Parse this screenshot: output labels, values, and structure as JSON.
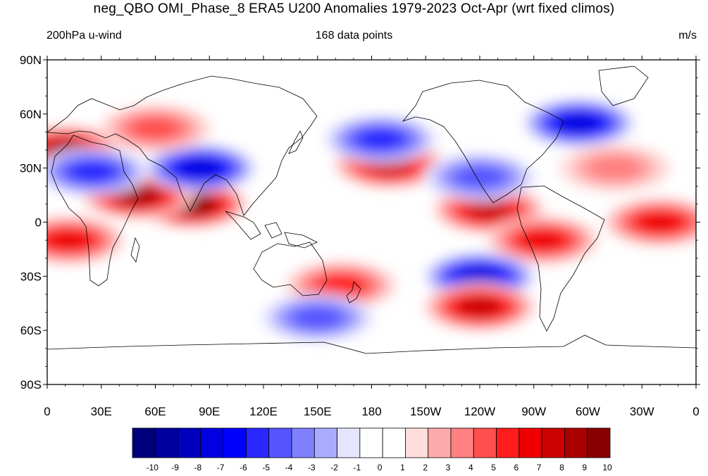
{
  "title": "neg_QBO OMI_Phase_8 ERA5 U200 Anomalies 1979-2023 Oct-Apr (wrt fixed climos)",
  "subtitle_left": "200hPa u-wind",
  "subtitle_center": "168 data points",
  "subtitle_right": "m/s",
  "map": {
    "projection": "cylindrical-equidistant",
    "lon_range": [
      0,
      360
    ],
    "lat_range": [
      -90,
      90
    ],
    "y_tick_labels": [
      "90N",
      "60N",
      "30N",
      "0",
      "30S",
      "60S",
      "90S"
    ],
    "y_tick_lats": [
      90,
      60,
      30,
      0,
      -30,
      -60,
      -90
    ],
    "x_tick_labels": [
      "0",
      "30E",
      "60E",
      "90E",
      "120E",
      "150E",
      "180",
      "150W",
      "120W",
      "90W",
      "60W",
      "30W",
      "0"
    ],
    "x_tick_lons": [
      0,
      30,
      60,
      90,
      120,
      150,
      180,
      210,
      240,
      270,
      300,
      330,
      360
    ],
    "coastlines": true
  },
  "anomaly_features": [
    {
      "lon": 80,
      "lat": 10,
      "value": 8.5
    },
    {
      "lon": 50,
      "lat": 15,
      "value": 7.5
    },
    {
      "lon": 10,
      "lat": 40,
      "value": 8
    },
    {
      "lon": 12,
      "lat": -10,
      "value": 6
    },
    {
      "lon": 85,
      "lat": 30,
      "value": -6.5
    },
    {
      "lon": 25,
      "lat": 28,
      "value": -5
    },
    {
      "lon": 60,
      "lat": 52,
      "value": 4
    },
    {
      "lon": 190,
      "lat": 32,
      "value": 6.5
    },
    {
      "lon": 185,
      "lat": 46,
      "value": -5
    },
    {
      "lon": 245,
      "lat": 7,
      "value": 7
    },
    {
      "lon": 275,
      "lat": -10,
      "value": 6
    },
    {
      "lon": 240,
      "lat": -30,
      "value": -7
    },
    {
      "lon": 240,
      "lat": -47,
      "value": 7
    },
    {
      "lon": 163,
      "lat": -35,
      "value": 5
    },
    {
      "lon": 150,
      "lat": -53,
      "value": -4
    },
    {
      "lon": 295,
      "lat": 55,
      "value": -6.5
    },
    {
      "lon": 340,
      "lat": 0,
      "value": 5.5
    },
    {
      "lon": 240,
      "lat": 25,
      "value": -4
    },
    {
      "lon": 315,
      "lat": 30,
      "value": 3
    }
  ],
  "colorbar": {
    "labels": [
      "-10",
      "-9",
      "-8",
      "-7",
      "-6",
      "-5",
      "-4",
      "-3",
      "-2",
      "-1",
      "0",
      "1",
      "2",
      "3",
      "4",
      "5",
      "6",
      "7",
      "8",
      "9",
      "10"
    ],
    "colors": [
      "#00007a",
      "#00009c",
      "#0000be",
      "#0000e0",
      "#0000ff",
      "#2828ff",
      "#5555ff",
      "#8080ff",
      "#aaaaff",
      "#e5e5ff",
      "#ffffff",
      "#ffffff",
      "#ffdddd",
      "#ffaaaa",
      "#ff8080",
      "#ff4f4f",
      "#ff1c1c",
      "#ee0000",
      "#cc0000",
      "#aa0000",
      "#880000"
    ]
  }
}
